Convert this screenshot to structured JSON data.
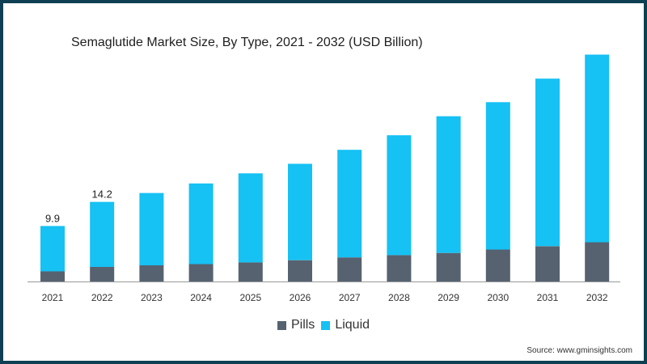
{
  "title": "Semaglutide Market Size, By Type, 2021 - 2032 (USD Billion)",
  "source": "Source: www.gminsights.com",
  "colors": {
    "pills": "#566270",
    "liquid": "#16c1f3",
    "axis": "#999999",
    "border": "#0f3f52"
  },
  "chart_data": {
    "type": "bar",
    "stacked": true,
    "title": "Semaglutide Market Size, By Type, 2021 - 2032 (USD Billion)",
    "categories": [
      "2021",
      "2022",
      "2023",
      "2024",
      "2025",
      "2026",
      "2027",
      "2028",
      "2029",
      "2030",
      "2031",
      "2032"
    ],
    "series": [
      {
        "name": "Pills",
        "values": [
          1.8,
          2.6,
          2.9,
          3.1,
          3.4,
          3.8,
          4.3,
          4.7,
          5.1,
          5.7,
          6.3,
          7.0
        ]
      },
      {
        "name": "Liquid",
        "values": [
          8.1,
          11.6,
          12.9,
          14.4,
          15.9,
          17.2,
          19.2,
          21.4,
          24.4,
          26.3,
          29.9,
          33.5
        ]
      }
    ],
    "data_labels": [
      {
        "category": "2021",
        "text": "9.9"
      },
      {
        "category": "2022",
        "text": "14.2"
      }
    ],
    "ylim": [
      0,
      41
    ],
    "grid": false,
    "legend": "bottom"
  }
}
